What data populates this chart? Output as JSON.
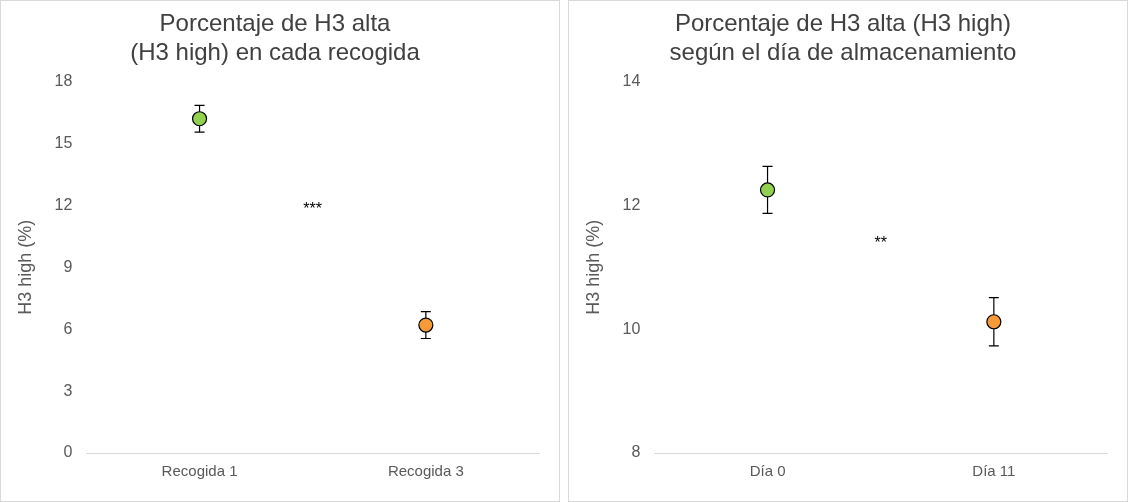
{
  "chart_data": [
    {
      "type": "scatter",
      "title": "Porcentaje de H3 alta\n(H3 high) en cada recogida",
      "ylabel": "H3 high (%)",
      "categories": [
        "Recogida 1",
        "Recogida 3"
      ],
      "values": [
        16.2,
        6.2
      ],
      "errors": [
        0.65,
        0.65
      ],
      "colors": [
        "#92d050",
        "#f79a3a"
      ],
      "marker": "circle",
      "ylim": [
        0,
        18
      ],
      "yticks": [
        0,
        3,
        6,
        9,
        12,
        15,
        18
      ],
      "grid": false,
      "legend": false,
      "annotations": [
        "***"
      ]
    },
    {
      "type": "scatter",
      "title": "Porcentaje de H3 alta (H3 high)\nsegún el día de almacenamiento",
      "ylabel": "H3 high (%)",
      "categories": [
        "Día 0",
        "Día 11"
      ],
      "values": [
        12.25,
        10.12
      ],
      "errors": [
        0.38,
        0.39
      ],
      "colors": [
        "#92d050",
        "#f79a3a"
      ],
      "marker": "circle",
      "ylim": [
        8,
        14
      ],
      "yticks": [
        8,
        10,
        12,
        14
      ],
      "grid": false,
      "legend": false,
      "annotations": [
        "**"
      ]
    }
  ]
}
